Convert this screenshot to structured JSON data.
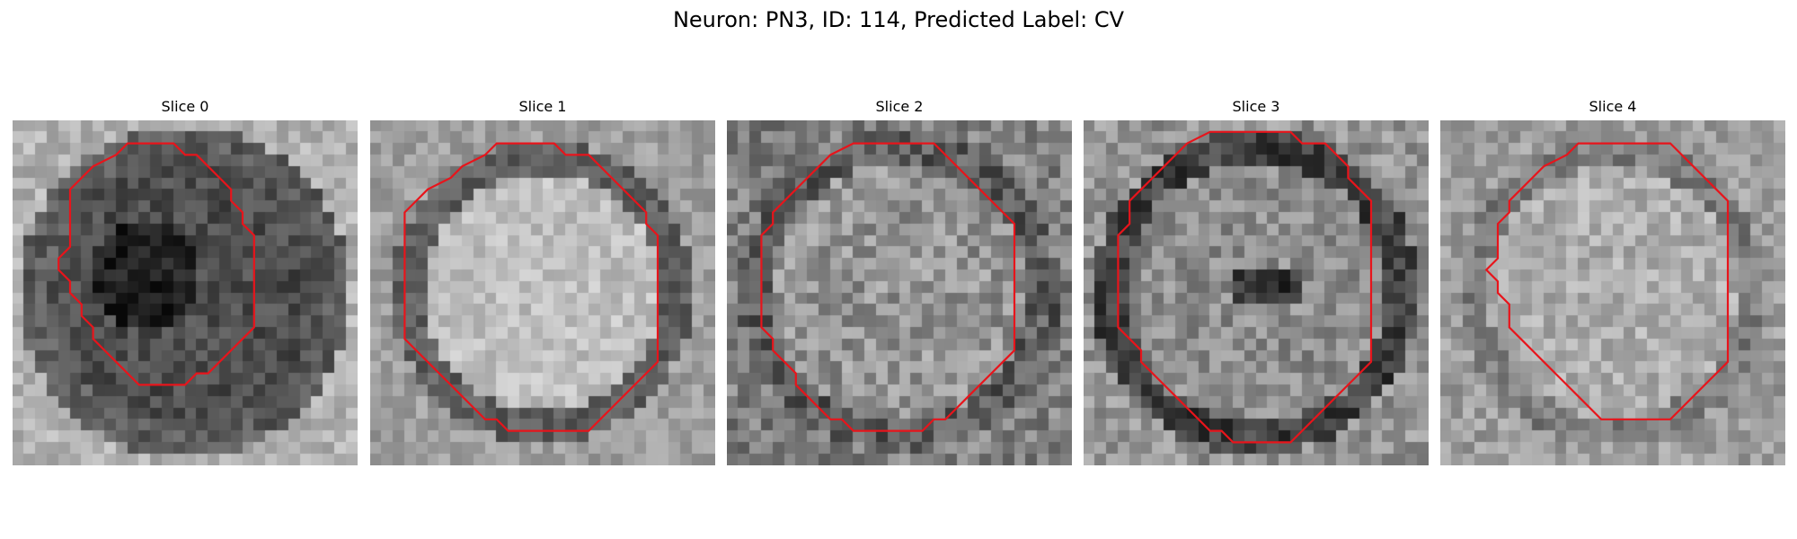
{
  "figure": {
    "title": "Neuron: PN3, ID: 114, Predicted Label: CV",
    "contour_color": "#e8141b"
  },
  "slices": [
    {
      "title": "Slice 0",
      "contour": [
        [
          10,
          2
        ],
        [
          9,
          3
        ],
        [
          7,
          4
        ],
        [
          6,
          5
        ],
        [
          5,
          6
        ],
        [
          5,
          7
        ],
        [
          5,
          8
        ],
        [
          5,
          9
        ],
        [
          5,
          10
        ],
        [
          5,
          11
        ],
        [
          4,
          12
        ],
        [
          4,
          13
        ],
        [
          5,
          14
        ],
        [
          5,
          15
        ],
        [
          6,
          16
        ],
        [
          6,
          17
        ],
        [
          7,
          18
        ],
        [
          7,
          19
        ],
        [
          8,
          20
        ],
        [
          9,
          21
        ],
        [
          10,
          22
        ],
        [
          11,
          23
        ],
        [
          12,
          23
        ],
        [
          13,
          23
        ],
        [
          14,
          23
        ],
        [
          15,
          23
        ],
        [
          16,
          22
        ],
        [
          17,
          22
        ],
        [
          18,
          21
        ],
        [
          19,
          20
        ],
        [
          20,
          19
        ],
        [
          21,
          18
        ],
        [
          21,
          17
        ],
        [
          21,
          16
        ],
        [
          21,
          15
        ],
        [
          21,
          14
        ],
        [
          21,
          13
        ],
        [
          21,
          12
        ],
        [
          21,
          11
        ],
        [
          21,
          10
        ],
        [
          20,
          9
        ],
        [
          20,
          8
        ],
        [
          19,
          7
        ],
        [
          19,
          6
        ],
        [
          18,
          5
        ],
        [
          17,
          4
        ],
        [
          16,
          3
        ],
        [
          15,
          3
        ],
        [
          14,
          2
        ],
        [
          12,
          2
        ],
        [
          11,
          2
        ]
      ]
    },
    {
      "title": "Slice 1",
      "contour": [
        [
          11,
          2
        ],
        [
          10,
          3
        ],
        [
          8,
          4
        ],
        [
          7,
          5
        ],
        [
          5,
          6
        ],
        [
          4,
          7
        ],
        [
          3,
          8
        ],
        [
          3,
          9
        ],
        [
          3,
          10
        ],
        [
          3,
          11
        ],
        [
          3,
          12
        ],
        [
          3,
          13
        ],
        [
          3,
          14
        ],
        [
          3,
          15
        ],
        [
          3,
          16
        ],
        [
          3,
          17
        ],
        [
          3,
          18
        ],
        [
          3,
          19
        ],
        [
          4,
          20
        ],
        [
          5,
          21
        ],
        [
          6,
          22
        ],
        [
          7,
          23
        ],
        [
          8,
          24
        ],
        [
          9,
          25
        ],
        [
          10,
          26
        ],
        [
          11,
          26
        ],
        [
          12,
          27
        ],
        [
          13,
          27
        ],
        [
          14,
          27
        ],
        [
          15,
          27
        ],
        [
          16,
          27
        ],
        [
          17,
          27
        ],
        [
          18,
          27
        ],
        [
          19,
          27
        ],
        [
          20,
          26
        ],
        [
          21,
          25
        ],
        [
          22,
          24
        ],
        [
          23,
          23
        ],
        [
          24,
          22
        ],
        [
          25,
          21
        ],
        [
          25,
          20
        ],
        [
          25,
          19
        ],
        [
          25,
          18
        ],
        [
          25,
          17
        ],
        [
          25,
          16
        ],
        [
          25,
          15
        ],
        [
          25,
          14
        ],
        [
          25,
          13
        ],
        [
          25,
          12
        ],
        [
          25,
          11
        ],
        [
          25,
          10
        ],
        [
          24,
          9
        ],
        [
          24,
          8
        ],
        [
          23,
          7
        ],
        [
          22,
          6
        ],
        [
          21,
          5
        ],
        [
          20,
          4
        ],
        [
          19,
          3
        ],
        [
          17,
          3
        ],
        [
          16,
          2
        ],
        [
          14,
          2
        ],
        [
          12,
          2
        ]
      ]
    },
    {
      "title": "Slice 2",
      "contour": [
        [
          11,
          2
        ],
        [
          9,
          3
        ],
        [
          8,
          4
        ],
        [
          7,
          5
        ],
        [
          6,
          6
        ],
        [
          5,
          7
        ],
        [
          4,
          8
        ],
        [
          4,
          9
        ],
        [
          3,
          10
        ],
        [
          3,
          11
        ],
        [
          3,
          12
        ],
        [
          3,
          13
        ],
        [
          3,
          14
        ],
        [
          3,
          15
        ],
        [
          3,
          16
        ],
        [
          3,
          17
        ],
        [
          3,
          18
        ],
        [
          4,
          19
        ],
        [
          4,
          20
        ],
        [
          5,
          21
        ],
        [
          6,
          22
        ],
        [
          6,
          23
        ],
        [
          7,
          24
        ],
        [
          8,
          25
        ],
        [
          9,
          26
        ],
        [
          10,
          26
        ],
        [
          11,
          27
        ],
        [
          12,
          27
        ],
        [
          13,
          27
        ],
        [
          14,
          27
        ],
        [
          15,
          27
        ],
        [
          16,
          27
        ],
        [
          17,
          27
        ],
        [
          18,
          26
        ],
        [
          19,
          26
        ],
        [
          20,
          25
        ],
        [
          21,
          24
        ],
        [
          22,
          23
        ],
        [
          23,
          22
        ],
        [
          24,
          21
        ],
        [
          25,
          20
        ],
        [
          25,
          19
        ],
        [
          25,
          18
        ],
        [
          25,
          17
        ],
        [
          25,
          16
        ],
        [
          25,
          15
        ],
        [
          25,
          14
        ],
        [
          25,
          13
        ],
        [
          25,
          12
        ],
        [
          25,
          11
        ],
        [
          25,
          10
        ],
        [
          25,
          9
        ],
        [
          24,
          8
        ],
        [
          23,
          7
        ],
        [
          22,
          6
        ],
        [
          21,
          5
        ],
        [
          20,
          4
        ],
        [
          19,
          3
        ],
        [
          18,
          2
        ],
        [
          16,
          2
        ],
        [
          14,
          2
        ],
        [
          12,
          2
        ]
      ]
    },
    {
      "title": "Slice 3",
      "contour": [
        [
          11,
          1
        ],
        [
          9,
          2
        ],
        [
          8,
          3
        ],
        [
          7,
          4
        ],
        [
          6,
          5
        ],
        [
          5,
          6
        ],
        [
          4,
          7
        ],
        [
          4,
          8
        ],
        [
          4,
          9
        ],
        [
          3,
          10
        ],
        [
          3,
          11
        ],
        [
          3,
          12
        ],
        [
          3,
          13
        ],
        [
          3,
          14
        ],
        [
          3,
          15
        ],
        [
          3,
          16
        ],
        [
          3,
          17
        ],
        [
          3,
          18
        ],
        [
          4,
          19
        ],
        [
          5,
          20
        ],
        [
          5,
          21
        ],
        [
          6,
          22
        ],
        [
          7,
          23
        ],
        [
          8,
          24
        ],
        [
          9,
          25
        ],
        [
          10,
          26
        ],
        [
          11,
          27
        ],
        [
          12,
          27
        ],
        [
          13,
          28
        ],
        [
          14,
          28
        ],
        [
          15,
          28
        ],
        [
          16,
          28
        ],
        [
          17,
          28
        ],
        [
          18,
          28
        ],
        [
          19,
          27
        ],
        [
          20,
          26
        ],
        [
          21,
          25
        ],
        [
          22,
          24
        ],
        [
          23,
          23
        ],
        [
          24,
          22
        ],
        [
          25,
          21
        ],
        [
          25,
          20
        ],
        [
          25,
          19
        ],
        [
          25,
          18
        ],
        [
          25,
          17
        ],
        [
          25,
          16
        ],
        [
          25,
          15
        ],
        [
          25,
          14
        ],
        [
          25,
          13
        ],
        [
          25,
          12
        ],
        [
          25,
          11
        ],
        [
          25,
          10
        ],
        [
          25,
          9
        ],
        [
          25,
          8
        ],
        [
          25,
          7
        ],
        [
          24,
          6
        ],
        [
          23,
          5
        ],
        [
          23,
          4
        ],
        [
          22,
          3
        ],
        [
          21,
          2
        ],
        [
          19,
          2
        ],
        [
          18,
          1
        ],
        [
          16,
          1
        ],
        [
          14,
          1
        ],
        [
          12,
          1
        ]
      ]
    },
    {
      "title": "Slice 4",
      "contour": [
        [
          12,
          2
        ],
        [
          11,
          3
        ],
        [
          9,
          4
        ],
        [
          8,
          5
        ],
        [
          7,
          6
        ],
        [
          6,
          7
        ],
        [
          6,
          8
        ],
        [
          5,
          9
        ],
        [
          5,
          10
        ],
        [
          5,
          11
        ],
        [
          5,
          12
        ],
        [
          4,
          13
        ],
        [
          5,
          14
        ],
        [
          5,
          15
        ],
        [
          6,
          16
        ],
        [
          6,
          17
        ],
        [
          6,
          18
        ],
        [
          7,
          19
        ],
        [
          8,
          20
        ],
        [
          9,
          21
        ],
        [
          10,
          22
        ],
        [
          11,
          23
        ],
        [
          12,
          24
        ],
        [
          13,
          25
        ],
        [
          14,
          26
        ],
        [
          15,
          26
        ],
        [
          16,
          26
        ],
        [
          17,
          26
        ],
        [
          18,
          26
        ],
        [
          19,
          26
        ],
        [
          20,
          26
        ],
        [
          21,
          25
        ],
        [
          22,
          24
        ],
        [
          23,
          23
        ],
        [
          24,
          22
        ],
        [
          25,
          21
        ],
        [
          25,
          20
        ],
        [
          25,
          19
        ],
        [
          25,
          18
        ],
        [
          25,
          17
        ],
        [
          25,
          16
        ],
        [
          25,
          15
        ],
        [
          25,
          14
        ],
        [
          25,
          13
        ],
        [
          25,
          12
        ],
        [
          25,
          11
        ],
        [
          25,
          10
        ],
        [
          25,
          9
        ],
        [
          25,
          8
        ],
        [
          25,
          7
        ],
        [
          24,
          6
        ],
        [
          23,
          5
        ],
        [
          22,
          4
        ],
        [
          21,
          3
        ],
        [
          20,
          2
        ],
        [
          19,
          2
        ],
        [
          18,
          2
        ],
        [
          16,
          2
        ],
        [
          14,
          2
        ],
        [
          13,
          2
        ]
      ]
    }
  ]
}
